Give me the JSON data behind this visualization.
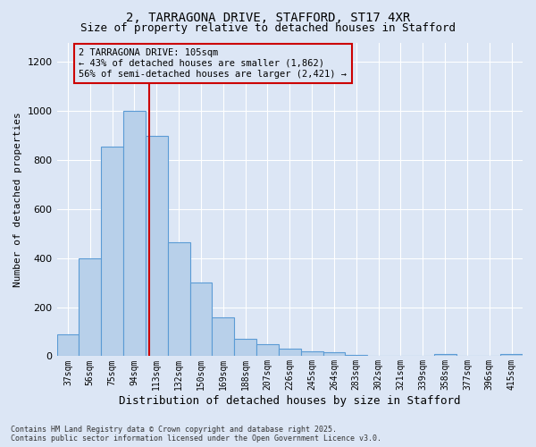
{
  "title": "2, TARRAGONA DRIVE, STAFFORD, ST17 4XR",
  "subtitle": "Size of property relative to detached houses in Stafford",
  "xlabel": "Distribution of detached houses by size in Stafford",
  "ylabel": "Number of detached properties",
  "footer1": "Contains HM Land Registry data © Crown copyright and database right 2025.",
  "footer2": "Contains public sector information licensed under the Open Government Licence v3.0.",
  "annotation_line1": "2 TARRAGONA DRIVE: 105sqm",
  "annotation_line2": "← 43% of detached houses are smaller (1,862)",
  "annotation_line3": "56% of semi-detached houses are larger (2,421) →",
  "bar_color": "#b8d0ea",
  "bar_edge_color": "#5b9bd5",
  "bg_color": "#dce6f5",
  "grid_color": "#ffffff",
  "red_line_color": "#cc0000",
  "annotation_box_edgecolor": "#cc0000",
  "categories": [
    "37sqm",
    "56sqm",
    "75sqm",
    "94sqm",
    "113sqm",
    "132sqm",
    "150sqm",
    "169sqm",
    "188sqm",
    "207sqm",
    "226sqm",
    "245sqm",
    "264sqm",
    "283sqm",
    "302sqm",
    "321sqm",
    "339sqm",
    "358sqm",
    "377sqm",
    "396sqm",
    "415sqm"
  ],
  "values": [
    90,
    400,
    855,
    1000,
    900,
    465,
    300,
    160,
    70,
    50,
    30,
    20,
    15,
    5,
    0,
    0,
    0,
    7,
    0,
    0,
    8
  ],
  "red_line_x": 3.65,
  "ylim": [
    0,
    1280
  ],
  "yticks": [
    0,
    200,
    400,
    600,
    800,
    1000,
    1200
  ],
  "title_fontsize": 10,
  "subtitle_fontsize": 9,
  "ylabel_fontsize": 8,
  "xlabel_fontsize": 9,
  "tick_fontsize": 7,
  "annotation_fontsize": 7.5,
  "footer_fontsize": 6
}
